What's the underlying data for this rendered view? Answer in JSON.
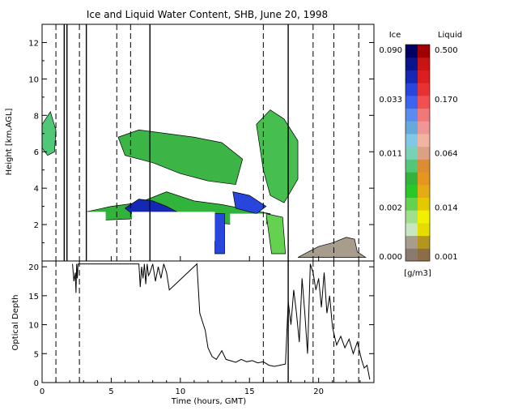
{
  "chart_data": [
    {
      "type": "heatmap",
      "title": "Ice and Liquid Water Content, SHB, June 20, 1998",
      "ylabel": "Height [km,AGL]",
      "xlim": [
        0,
        24
      ],
      "ylim": [
        0,
        13
      ],
      "yticks": [
        "2",
        "4",
        "6",
        "8",
        "10",
        "12"
      ],
      "colorbar": {
        "ice_label": "Ice",
        "liquid_label": "Liquid",
        "units": "[g/m3]",
        "ice_ticks": [
          "0.090",
          "0.033",
          "0.011",
          "0.002",
          "0.000"
        ],
        "liquid_ticks": [
          "0.500",
          "0.170",
          "0.064",
          "0.014",
          "0.001"
        ],
        "ice_colors": [
          "#8c7a6e",
          "#a89c8c",
          "#c8e6c0",
          "#a0e08c",
          "#64d250",
          "#28c828",
          "#32b43c",
          "#50c878",
          "#78d2b4",
          "#82c8e6",
          "#64aadc",
          "#5a8cf0",
          "#3c64f0",
          "#2846dc",
          "#1428b4",
          "#0a148c",
          "#000064"
        ],
        "liquid_colors": [
          "#8c6e46",
          "#b4961e",
          "#e6dc00",
          "#f0f000",
          "#e6c800",
          "#e6aa14",
          "#e6961e",
          "#dc8c32",
          "#dca082",
          "#f0b4a0",
          "#f09696",
          "#f07878",
          "#f05050",
          "#e63232",
          "#dc1e1e",
          "#c81414",
          "#a00000"
        ]
      },
      "vertical_dashed_lines_hours": [
        1.0,
        2.7,
        5.4,
        6.4,
        16.0,
        19.6,
        21.1,
        22.9
      ],
      "vertical_solid_lines_hours": [
        1.6,
        1.8,
        3.2,
        7.8,
        17.8
      ]
    },
    {
      "type": "line",
      "xlabel": "Time (hours, GMT)",
      "ylabel": "Optical Depth",
      "xlim": [
        0,
        24
      ],
      "ylim": [
        0,
        21
      ],
      "xticks": [
        "0",
        "5",
        "10",
        "15",
        "20"
      ],
      "yticks": [
        "0",
        "5",
        "10",
        "15",
        "20"
      ],
      "series": [
        {
          "x": [
            2.2,
            2.3,
            2.4,
            2.45,
            2.5,
            2.55,
            2.6,
            7.0,
            7.1,
            7.2,
            7.3,
            7.4,
            7.5,
            7.6,
            7.7,
            7.8,
            8.0,
            8.2,
            8.4,
            8.6,
            8.8,
            9.0,
            9.2,
            11.2,
            11.4,
            11.8,
            12.0,
            12.3,
            12.6,
            13.0,
            13.3,
            13.6,
            14.0,
            14.4,
            14.8,
            15.2,
            15.6,
            16.0,
            16.4,
            16.8,
            17.2,
            17.6,
            17.8,
            18.0,
            18.2,
            18.4,
            18.6,
            18.8,
            19.0,
            19.2,
            19.4,
            19.6,
            19.8,
            20.0,
            20.2,
            20.4,
            20.6,
            20.8,
            21.0,
            21.3,
            21.6,
            21.9,
            22.2,
            22.5,
            22.8,
            23.1,
            23.3,
            23.5,
            23.7
          ],
          "y": [
            20.5,
            17.5,
            19.0,
            15.5,
            20.5,
            18.0,
            20.5,
            20.5,
            16.5,
            20.0,
            18.0,
            20.5,
            17.0,
            20.5,
            18.5,
            19.0,
            20.5,
            17.5,
            20.0,
            18.0,
            20.5,
            19.0,
            16.0,
            20.5,
            12.0,
            9.0,
            6.0,
            4.5,
            4.0,
            5.5,
            4.0,
            3.8,
            3.5,
            4.0,
            3.6,
            3.8,
            3.4,
            3.6,
            3.0,
            2.8,
            3.0,
            3.2,
            14.0,
            10.0,
            16.0,
            12.0,
            7.0,
            18.0,
            12.0,
            5.0,
            20.5,
            19.0,
            16.0,
            18.0,
            13.0,
            19.0,
            12.0,
            15.0,
            9.5,
            6.5,
            8.0,
            6.0,
            7.5,
            5.0,
            7.0,
            4.0,
            2.5,
            3.0,
            0.5
          ]
        }
      ],
      "vertical_dashed_lines_hours": [
        1.0,
        2.7,
        16.0,
        19.6,
        21.1,
        22.9
      ],
      "vertical_solid_lines_hours": [
        17.8
      ]
    }
  ]
}
